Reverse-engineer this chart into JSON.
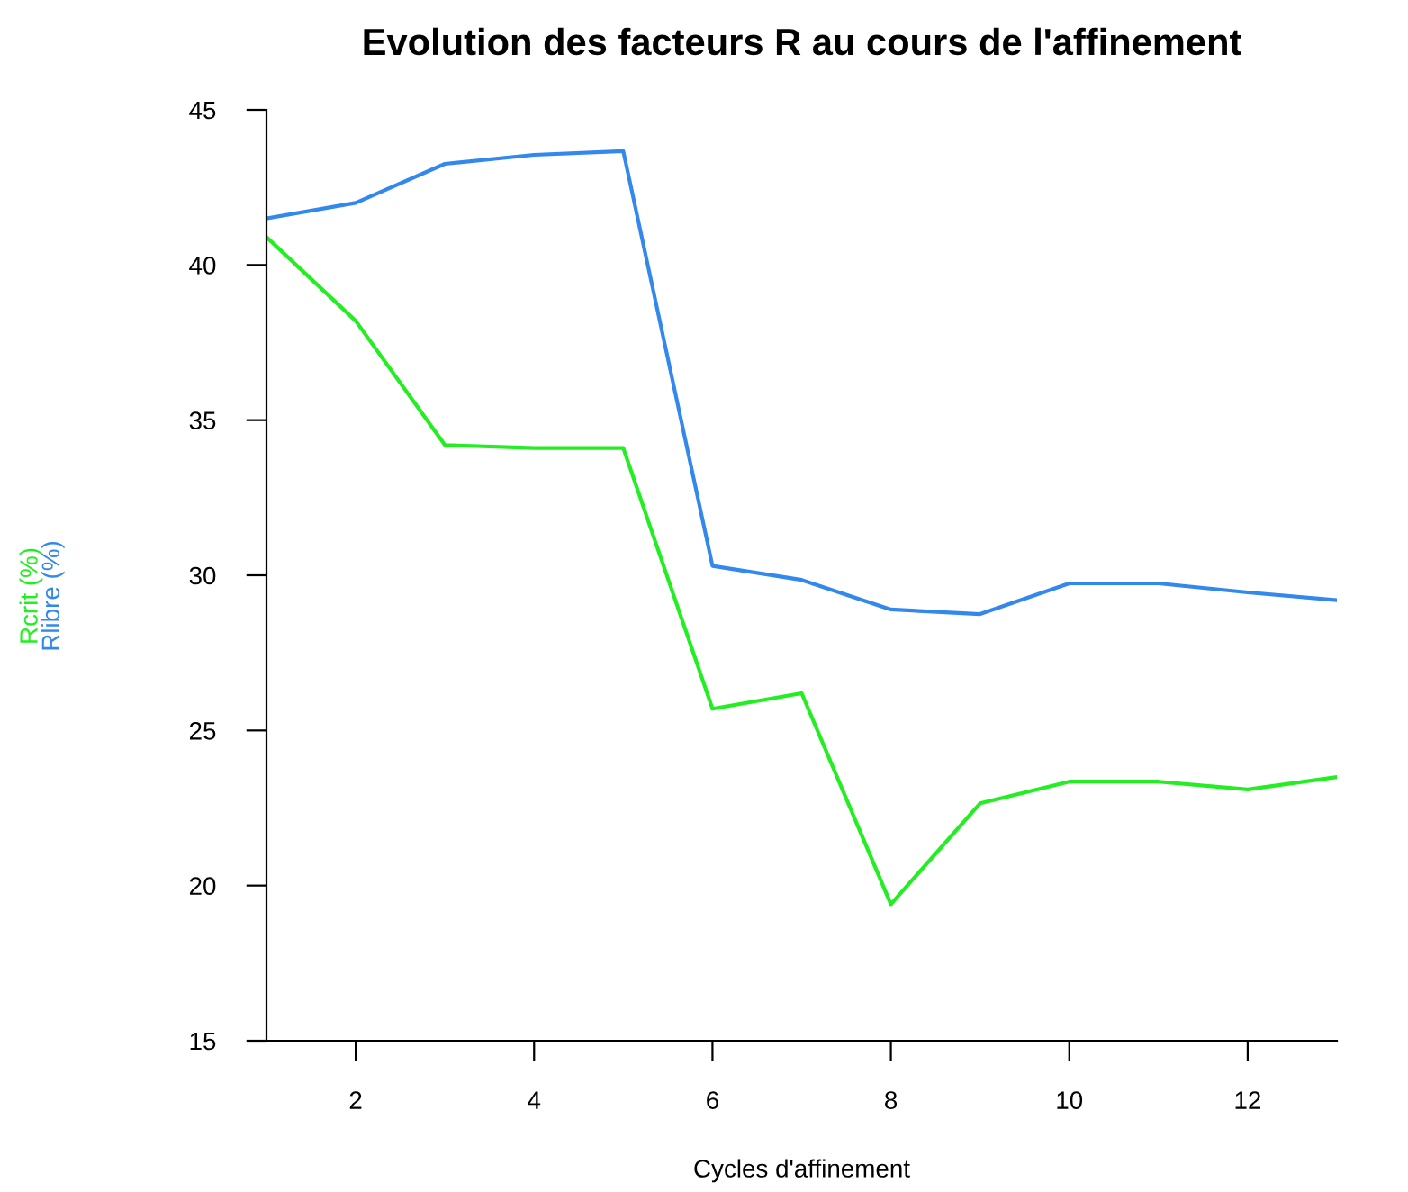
{
  "chart_data": {
    "type": "line",
    "title": "Evolution des facteurs R au cours de l'affinement",
    "xlabel": "Cycles d'affinement",
    "x": [
      1,
      2,
      3,
      4,
      5,
      6,
      7,
      8,
      9,
      10,
      11,
      12,
      13
    ],
    "series": [
      {
        "name": "Rcrit (%)",
        "color": "#22ee22",
        "values": [
          40.9,
          38.2,
          34.2,
          34.1,
          34.1,
          25.7,
          26.2,
          19.4,
          22.65,
          23.35,
          23.35,
          23.1,
          23.5
        ]
      },
      {
        "name": "Rlibre (%)",
        "color": "#3388ee",
        "values": [
          41.5,
          42.0,
          43.26,
          43.55,
          43.67,
          30.3,
          29.85,
          28.9,
          28.75,
          29.74,
          29.74,
          29.45,
          29.2
        ]
      }
    ],
    "xlim": [
      1,
      13
    ],
    "xticks": [
      2,
      4,
      6,
      8,
      10,
      12
    ],
    "ylim": [
      15,
      45
    ],
    "yticks": [
      15,
      20,
      25,
      30,
      35,
      40,
      45
    ],
    "grid": false,
    "legend": false,
    "marker": "none",
    "line_style": "solid"
  }
}
